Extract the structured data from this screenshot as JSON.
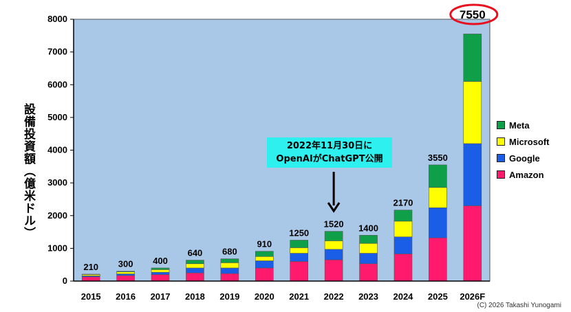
{
  "chart_data": {
    "type": "bar",
    "stacked": true,
    "categories": [
      "2015",
      "2016",
      "2017",
      "2018",
      "2019",
      "2020",
      "2021",
      "2022",
      "2023",
      "2024",
      "2025",
      "2026F"
    ],
    "series": [
      {
        "name": "Amazon",
        "color": "#ff1a6e",
        "values": [
          130,
          170,
          200,
          250,
          230,
          400,
          600,
          650,
          530,
          830,
          1320,
          2300
        ]
      },
      {
        "name": "Google",
        "color": "#1a5ee8",
        "values": [
          30,
          50,
          70,
          150,
          170,
          220,
          250,
          320,
          320,
          520,
          920,
          1900
        ]
      },
      {
        "name": "Microsoft",
        "color": "#ffff00",
        "values": [
          40,
          60,
          80,
          130,
          160,
          130,
          170,
          260,
          300,
          480,
          620,
          1900
        ]
      },
      {
        "name": "Meta",
        "color": "#0f9f48",
        "values": [
          10,
          20,
          50,
          110,
          120,
          160,
          230,
          290,
          250,
          340,
          690,
          1450
        ]
      }
    ],
    "totals": [
      "210",
      "300",
      "400",
      "640",
      "680",
      "910",
      "1250",
      "1520",
      "1400",
      "2170",
      "3550",
      "7550"
    ],
    "ylabel": "設備投資額（億米ドル）",
    "ylim": [
      0,
      8000
    ],
    "yticks": [
      "0",
      "1000",
      "2000",
      "3000",
      "4000",
      "5000",
      "6000",
      "7000",
      "8000"
    ],
    "legend_position": "right",
    "grid": false,
    "plot_background": "#a9c8e8",
    "annotation": {
      "lines": [
        "2022年11月30日に",
        "OpenAIがChatGPT公開"
      ],
      "category": "2022"
    },
    "highlight": {
      "category": "2026F",
      "color": "#e8101e"
    }
  },
  "copyright": "(C) 2026 Takashi Yunogami"
}
